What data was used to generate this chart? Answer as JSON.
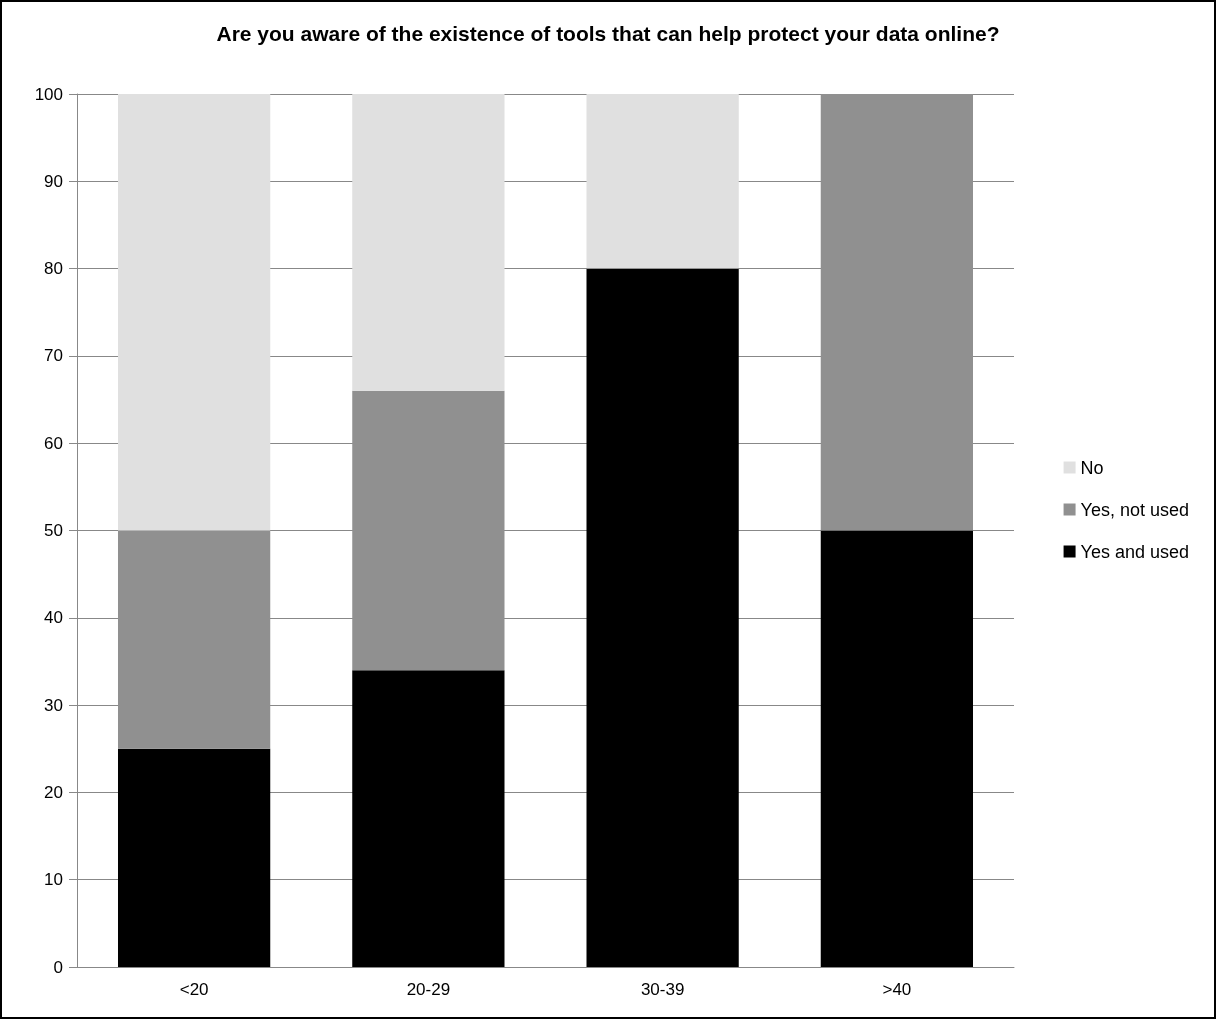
{
  "chart_data": {
    "type": "bar",
    "title": "Are you aware of the existence of tools that can help protect your data online?",
    "categories": [
      "<20",
      "20-29",
      "30-39",
      ">40"
    ],
    "stacked": true,
    "series": [
      {
        "name": "Yes and used",
        "color": "#000000",
        "values": [
          25,
          34,
          80,
          50
        ]
      },
      {
        "name": "Yes, not used",
        "color": "#909090",
        "values": [
          25,
          32,
          0,
          50
        ]
      },
      {
        "name": "No",
        "color": "#e0e0e0",
        "values": [
          50,
          34,
          20,
          0
        ]
      }
    ],
    "ylim": [
      0,
      100
    ],
    "yticks": [
      0,
      10,
      20,
      30,
      40,
      50,
      60,
      70,
      80,
      90,
      100
    ],
    "grid": "y",
    "legend": "right"
  }
}
